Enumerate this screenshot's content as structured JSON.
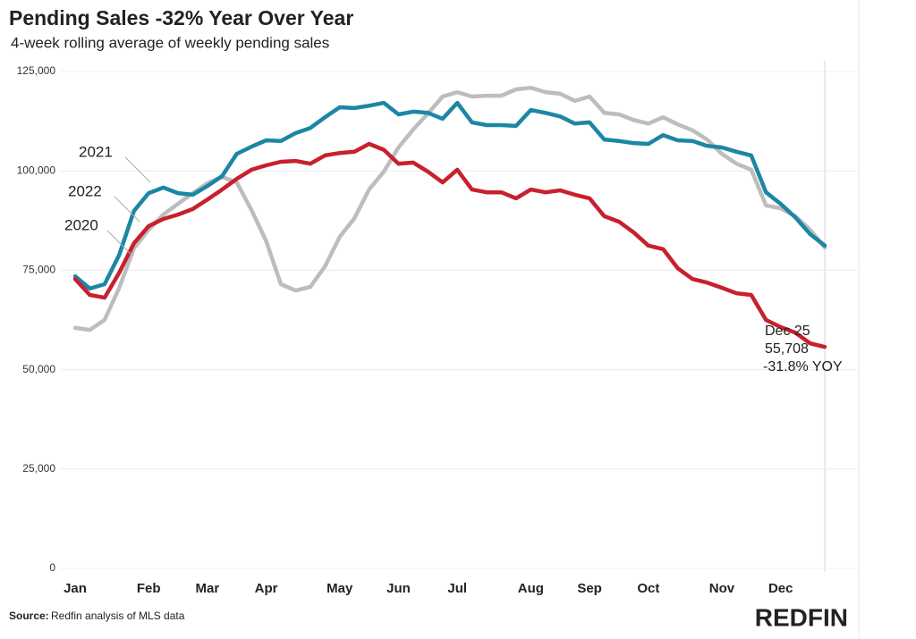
{
  "chart_data": {
    "type": "line",
    "title": "Pending Sales -32% Year Over Year",
    "subtitle": "4-week rolling average of weekly pending sales",
    "categories": [
      "Jan",
      null,
      null,
      null,
      null,
      "Feb",
      null,
      null,
      null,
      "Mar",
      null,
      null,
      null,
      "Apr",
      null,
      null,
      null,
      null,
      "May",
      null,
      null,
      null,
      "Jun",
      null,
      null,
      null,
      "Jul",
      null,
      null,
      null,
      null,
      "Aug",
      null,
      null,
      null,
      "Sep",
      null,
      null,
      null,
      "Oct",
      null,
      null,
      null,
      null,
      "Nov",
      null,
      null,
      null,
      "Dec",
      null,
      null,
      null
    ],
    "series": [
      {
        "name": "2020",
        "color": "#bdbdbd",
        "values": [
          60500,
          60000,
          62500,
          70600,
          80500,
          85200,
          89000,
          91700,
          94400,
          96900,
          98500,
          97100,
          90100,
          82300,
          71500,
          69900,
          70800,
          76000,
          83400,
          88100,
          95300,
          99800,
          105900,
          110400,
          114400,
          118700,
          119800,
          118700,
          118900,
          118900,
          120500,
          120900,
          119800,
          119400,
          117600,
          118700,
          114600,
          114200,
          112800,
          111900,
          113500,
          111700,
          110200,
          107900,
          104300,
          101800,
          100300,
          91300,
          90600,
          88600,
          85200,
          80700
        ]
      },
      {
        "name": "2021",
        "color": "#1b87a4",
        "values": [
          73500,
          70400,
          71500,
          78900,
          89900,
          94400,
          95800,
          94400,
          94000,
          96200,
          98700,
          104300,
          106100,
          107700,
          107500,
          109500,
          110800,
          113500,
          116000,
          115800,
          116400,
          117100,
          114200,
          114900,
          114600,
          113100,
          117100,
          112200,
          111500,
          111500,
          111300,
          115300,
          114600,
          113700,
          111900,
          112200,
          107900,
          107500,
          107000,
          106800,
          109000,
          107700,
          107500,
          106300,
          105900,
          104800,
          103900,
          94600,
          91700,
          88300,
          84100,
          81200
        ]
      },
      {
        "name": "2022",
        "color": "#c8202d",
        "values": [
          72800,
          68800,
          68100,
          74400,
          81800,
          86100,
          87900,
          89000,
          90400,
          92800,
          95300,
          98000,
          100300,
          101400,
          102300,
          102500,
          101800,
          103900,
          104500,
          104800,
          106800,
          105300,
          101800,
          102100,
          99800,
          97100,
          100300,
          95300,
          94600,
          94600,
          93100,
          95300,
          94600,
          95100,
          94000,
          93100,
          88600,
          87200,
          84500,
          81200,
          80300,
          75500,
          72800,
          71900,
          70600,
          69200,
          68800,
          62500,
          60700,
          59300,
          56600,
          55708
        ]
      }
    ],
    "ylim": [
      0,
      125000
    ],
    "yticks": [
      0,
      {
        "value": 25000,
        "label": "25,000"
      },
      {
        "value": 50000,
        "label": "50,000"
      },
      {
        "value": 75000,
        "label": "75,000"
      },
      {
        "value": 100000,
        "label": "100,000"
      },
      {
        "value": 125000,
        "label": "125,000"
      }
    ],
    "grid": true,
    "annotation": [
      "Dec 25",
      "55,708",
      "-31.8% YOY"
    ],
    "source_label": "Source:",
    "source": "Redfin analysis of MLS data",
    "logo": "REDFIN"
  }
}
